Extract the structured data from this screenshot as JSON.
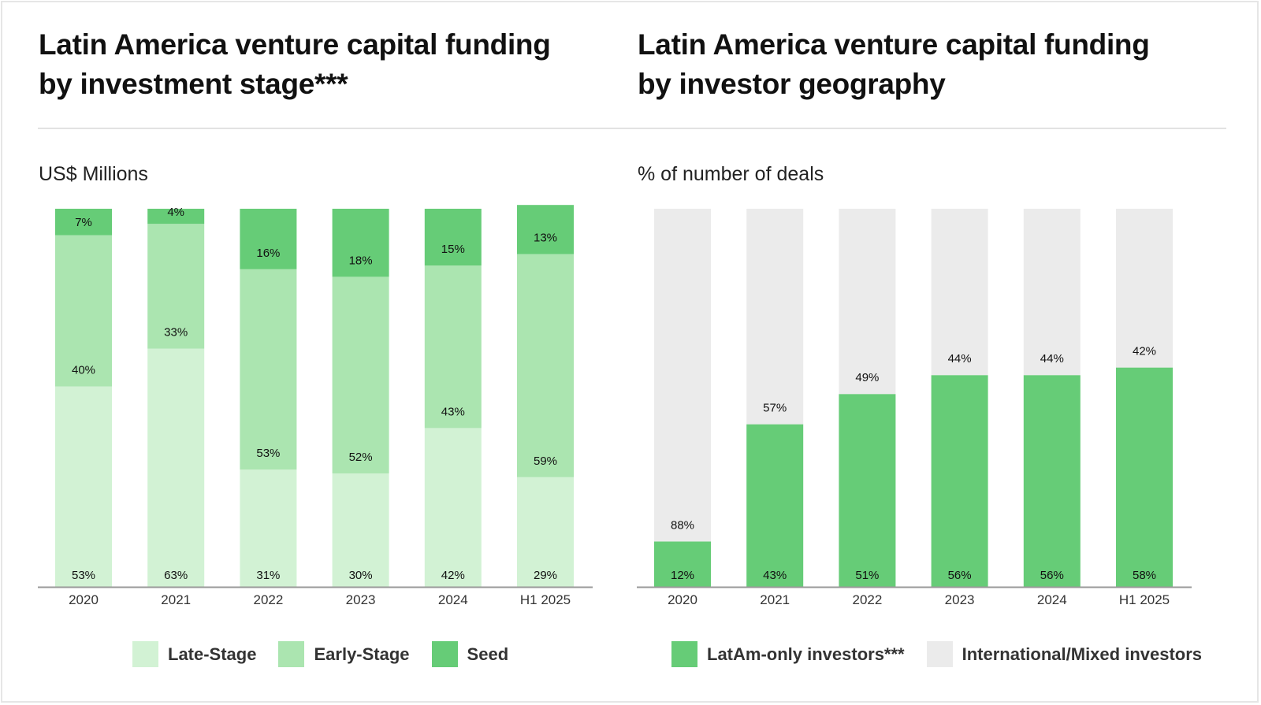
{
  "colors": {
    "late_stage": "#d2f2d4",
    "early_stage": "#abe5b0",
    "seed": "#66cc77",
    "latam_only": "#66cc77",
    "international": "#ebebeb",
    "axis": "#999999"
  },
  "chart_data": [
    {
      "type": "bar",
      "stacked": true,
      "title": "Latin America venture capital funding by investment stage***",
      "ylabel": "US$ Millions",
      "xlabel": "",
      "categories": [
        "2020",
        "2021",
        "2022",
        "2023",
        "2024",
        "H1 2025"
      ],
      "series": [
        {
          "name": "Late-Stage",
          "color_key": "late_stage",
          "values": [
            53,
            63,
            31,
            30,
            42,
            29
          ],
          "labels": [
            "53%",
            "63%",
            "31%",
            "30%",
            "42%",
            "29%"
          ]
        },
        {
          "name": "Early-Stage",
          "color_key": "early_stage",
          "values": [
            40,
            33,
            53,
            52,
            43,
            59
          ],
          "labels": [
            "40%",
            "33%",
            "53%",
            "52%",
            "43%",
            "59%"
          ]
        },
        {
          "name": "Seed",
          "color_key": "seed",
          "values": [
            7,
            4,
            16,
            18,
            15,
            13
          ],
          "labels": [
            "7%",
            "4%",
            "16%",
            "18%",
            "15%",
            "13%"
          ]
        }
      ],
      "ylim": [
        0,
        100
      ],
      "grid": false,
      "legend_position": "bottom-center"
    },
    {
      "type": "bar",
      "stacked": true,
      "title": "Latin America venture capital funding by investor geography",
      "ylabel": "% of number of deals",
      "xlabel": "",
      "categories": [
        "2020",
        "2021",
        "2022",
        "2023",
        "2024",
        "H1 2025"
      ],
      "series": [
        {
          "name": "LatAm-only investors***",
          "color_key": "latam_only",
          "values": [
            12,
            43,
            51,
            56,
            56,
            58
          ],
          "labels": [
            "12%",
            "43%",
            "51%",
            "56%",
            "56%",
            "58%"
          ]
        },
        {
          "name": "International/Mixed investors",
          "color_key": "international",
          "values": [
            88,
            57,
            49,
            44,
            44,
            42
          ],
          "labels": [
            "88%",
            "57%",
            "49%",
            "44%",
            "44%",
            "42%"
          ]
        }
      ],
      "ylim": [
        0,
        100
      ],
      "grid": false,
      "legend_position": "bottom-center"
    }
  ],
  "left": {
    "title_line1": "Latin America venture capital funding",
    "title_line2": "by investment stage***",
    "subtitle": "US$ Millions",
    "legend": [
      "Late-Stage",
      "Early-Stage",
      "Seed"
    ]
  },
  "right": {
    "title_line1": "Latin America venture capital funding",
    "title_line2": "by investor geography",
    "subtitle": "% of number of deals",
    "legend": [
      "LatAm-only investors***",
      "International/Mixed investors"
    ]
  }
}
